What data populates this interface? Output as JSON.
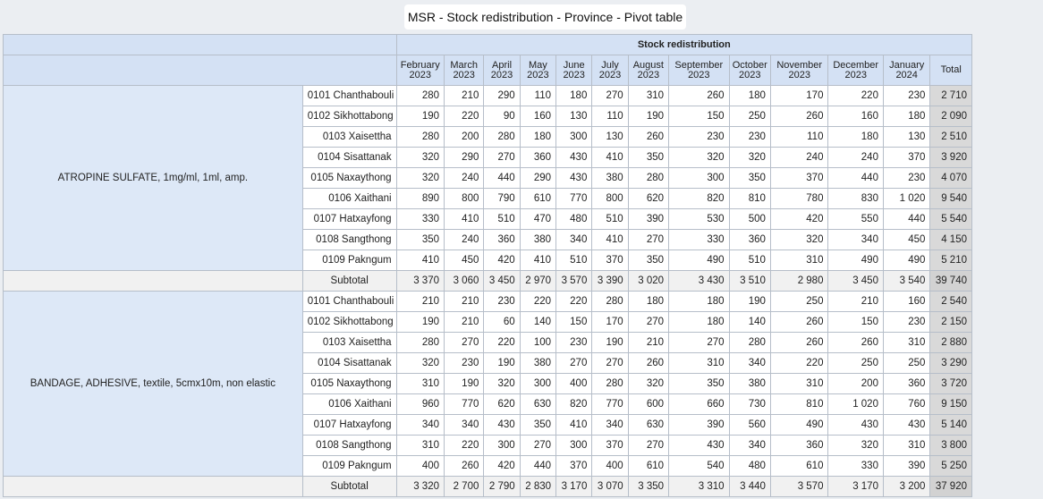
{
  "page_title": "MSR - Stock redistribution - Province - Pivot table",
  "table": {
    "header": "Stock redistribution",
    "months": [
      [
        "February",
        "2023"
      ],
      [
        "March",
        "2023"
      ],
      [
        "April",
        "2023"
      ],
      [
        "May",
        "2023"
      ],
      [
        "June",
        "2023"
      ],
      [
        "July",
        "2023"
      ],
      [
        "August",
        "2023"
      ],
      [
        "September",
        "2023"
      ],
      [
        "October",
        "2023"
      ],
      [
        "November",
        "2023"
      ],
      [
        "December",
        "2023"
      ],
      [
        "January",
        "2024"
      ]
    ],
    "total_label": "Total",
    "groups": [
      {
        "item": "ATROPINE SULFATE, 1mg/ml, 1ml, amp.",
        "rows": [
          {
            "province": "0101 Chanthabouli",
            "values": [
              "280",
              "210",
              "290",
              "110",
              "180",
              "270",
              "310",
              "260",
              "180",
              "170",
              "220",
              "230"
            ],
            "total": "2 710"
          },
          {
            "province": "0102 Sikhottabong",
            "values": [
              "190",
              "220",
              "90",
              "160",
              "130",
              "110",
              "190",
              "150",
              "250",
              "260",
              "160",
              "180"
            ],
            "total": "2 090"
          },
          {
            "province": "0103 Xaisettha",
            "values": [
              "280",
              "200",
              "280",
              "180",
              "300",
              "130",
              "260",
              "230",
              "230",
              "110",
              "180",
              "130"
            ],
            "total": "2 510"
          },
          {
            "province": "0104 Sisattanak",
            "values": [
              "320",
              "290",
              "270",
              "360",
              "430",
              "410",
              "350",
              "320",
              "320",
              "240",
              "240",
              "370"
            ],
            "total": "3 920"
          },
          {
            "province": "0105 Naxaythong",
            "values": [
              "320",
              "240",
              "440",
              "290",
              "430",
              "380",
              "280",
              "300",
              "350",
              "370",
              "440",
              "230"
            ],
            "total": "4 070"
          },
          {
            "province": "0106 Xaithani",
            "values": [
              "890",
              "800",
              "790",
              "610",
              "770",
              "800",
              "620",
              "820",
              "810",
              "780",
              "830",
              "1 020"
            ],
            "total": "9 540"
          },
          {
            "province": "0107 Hatxayfong",
            "values": [
              "330",
              "410",
              "510",
              "470",
              "480",
              "510",
              "390",
              "530",
              "500",
              "420",
              "550",
              "440"
            ],
            "total": "5 540"
          },
          {
            "province": "0108 Sangthong",
            "values": [
              "350",
              "240",
              "360",
              "380",
              "340",
              "410",
              "270",
              "330",
              "360",
              "320",
              "340",
              "450"
            ],
            "total": "4 150"
          },
          {
            "province": "0109 Pakngum",
            "values": [
              "410",
              "450",
              "420",
              "410",
              "510",
              "370",
              "350",
              "490",
              "510",
              "310",
              "490",
              "490"
            ],
            "total": "5 210"
          }
        ],
        "subtotal": {
          "label": "Subtotal",
          "values": [
            "3 370",
            "3 060",
            "3 450",
            "2 970",
            "3 570",
            "3 390",
            "3 020",
            "3 430",
            "3 510",
            "2 980",
            "3 450",
            "3 540"
          ],
          "total": "39 740"
        }
      },
      {
        "item": "BANDAGE, ADHESIVE, textile, 5cmx10m, non elastic",
        "rows": [
          {
            "province": "0101 Chanthabouli",
            "values": [
              "210",
              "210",
              "230",
              "220",
              "220",
              "280",
              "180",
              "180",
              "190",
              "250",
              "210",
              "160"
            ],
            "total": "2 540"
          },
          {
            "province": "0102 Sikhottabong",
            "values": [
              "190",
              "210",
              "60",
              "140",
              "150",
              "170",
              "270",
              "180",
              "140",
              "260",
              "150",
              "230"
            ],
            "total": "2 150"
          },
          {
            "province": "0103 Xaisettha",
            "values": [
              "280",
              "270",
              "220",
              "100",
              "230",
              "190",
              "210",
              "270",
              "280",
              "260",
              "260",
              "310"
            ],
            "total": "2 880"
          },
          {
            "province": "0104 Sisattanak",
            "values": [
              "320",
              "230",
              "190",
              "380",
              "270",
              "270",
              "260",
              "310",
              "340",
              "220",
              "250",
              "250"
            ],
            "total": "3 290"
          },
          {
            "province": "0105 Naxaythong",
            "values": [
              "310",
              "190",
              "320",
              "300",
              "400",
              "280",
              "320",
              "350",
              "380",
              "310",
              "200",
              "360"
            ],
            "total": "3 720"
          },
          {
            "province": "0106 Xaithani",
            "values": [
              "960",
              "770",
              "620",
              "630",
              "820",
              "770",
              "600",
              "660",
              "730",
              "810",
              "1 020",
              "760"
            ],
            "total": "9 150"
          },
          {
            "province": "0107 Hatxayfong",
            "values": [
              "340",
              "340",
              "430",
              "350",
              "410",
              "340",
              "630",
              "390",
              "560",
              "490",
              "430",
              "430"
            ],
            "total": "5 140"
          },
          {
            "province": "0108 Sangthong",
            "values": [
              "310",
              "220",
              "300",
              "270",
              "300",
              "370",
              "270",
              "430",
              "340",
              "360",
              "320",
              "310"
            ],
            "total": "3 800"
          },
          {
            "province": "0109 Pakngum",
            "values": [
              "400",
              "260",
              "420",
              "440",
              "370",
              "400",
              "610",
              "540",
              "480",
              "610",
              "330",
              "390"
            ],
            "total": "5 250"
          }
        ],
        "subtotal": {
          "label": "Subtotal",
          "values": [
            "3 320",
            "2 700",
            "2 790",
            "2 830",
            "3 170",
            "3 070",
            "3 350",
            "3 310",
            "3 440",
            "3 570",
            "3 170",
            "3 200"
          ],
          "total": "37 920"
        }
      }
    ]
  }
}
